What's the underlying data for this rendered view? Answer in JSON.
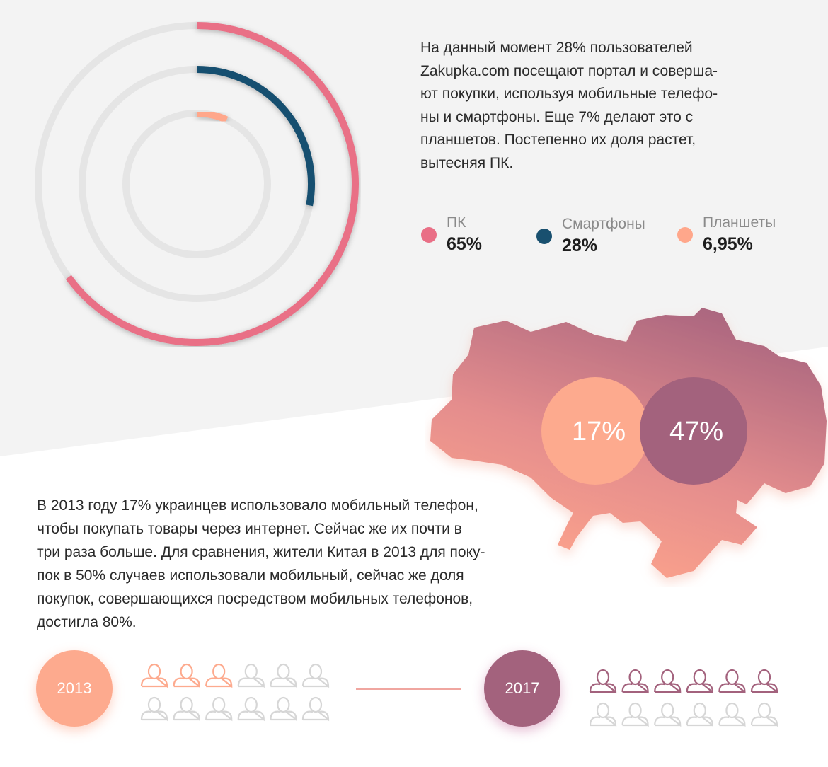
{
  "intro_text": "На данный момент 28% пользователей\nZakupka.com посещают портал и соверша-\nют покупки, используя мобильные телефо-\nны и смартфоны. Еще 7% делают это с\nпланшетов. Постепенно их доля растет,\nвытесняя ПК.",
  "colors": {
    "background_top": "#f3f3f3",
    "pc": "#e96f86",
    "smartphone": "#19506f",
    "tablet": "#ffa78b",
    "track": "#e5e5e5",
    "peach": "#fdaa8e",
    "mauve": "#a3627d",
    "person_inactive": "#d6d6d6"
  },
  "chart_data": [
    {
      "type": "radial-bar",
      "series": [
        {
          "name": "ПК",
          "value": 65,
          "value_label": "65%",
          "color": "#e96f86"
        },
        {
          "name": "Смартфоны",
          "value": 28,
          "value_label": "28%",
          "color": "#19506f"
        },
        {
          "name": "Планшеты",
          "value": 6.95,
          "value_label": "6,95%",
          "color": "#ffa78b"
        }
      ],
      "legend_position": "right"
    },
    {
      "type": "comparison-bubbles",
      "values": [
        {
          "label": "17%",
          "value": 17,
          "year": "2013"
        },
        {
          "label": "47%",
          "value": 47,
          "year": "2017"
        }
      ]
    },
    {
      "type": "pictogram",
      "groups": [
        {
          "year": "2013",
          "highlighted": 3,
          "total": 12,
          "color": "#fdaa8e"
        },
        {
          "year": "2017",
          "highlighted": 6,
          "total": 12,
          "color": "#a3627d"
        }
      ]
    }
  ],
  "story_text": "В  2013 году 17%  украинцев использовало  мобильный телефон,\nчтобы покупать товары через интернет.  Сейчас же их почти в\nтри раза больше. Для сравнения, жители Китая  в 2013 для поку-\nпок в 50% случаев использовали мобильный, сейчас  же доля\nпокупок, совершающихся посредством мобильных телефонов,\nдостигла 80%.",
  "bubble_2013": "17%",
  "bubble_2017": "47%",
  "year_2013": "2013",
  "year_2017": "2017"
}
